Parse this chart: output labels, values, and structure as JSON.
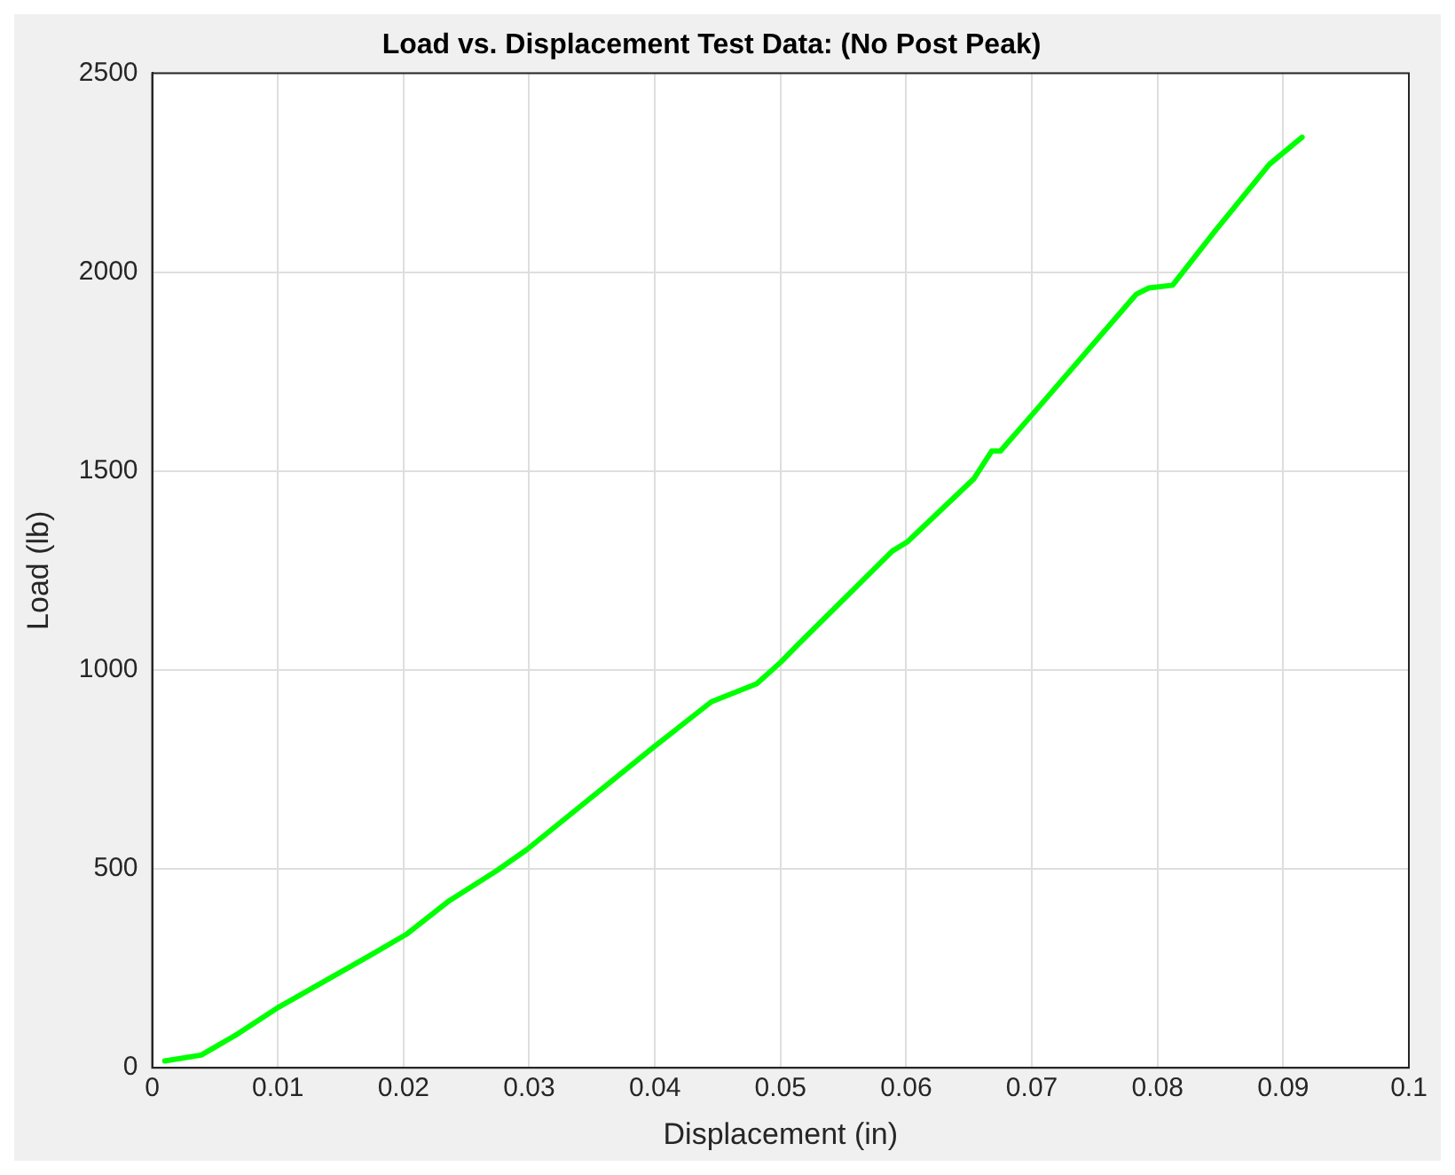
{
  "chart_data": {
    "type": "line",
    "title": "Load vs. Displacement Test Data: (No Post Peak)",
    "xlabel": "Displacement (in)",
    "ylabel": "Load (lb)",
    "x": [
      0.001,
      0.0039,
      0.0068,
      0.0101,
      0.0173,
      0.0202,
      0.0236,
      0.0274,
      0.0298,
      0.0399,
      0.0445,
      0.0481,
      0.05,
      0.0514,
      0.0589,
      0.0601,
      0.0654,
      0.0668,
      0.0675,
      0.0702,
      0.0783,
      0.0793,
      0.0812,
      0.0846,
      0.0889,
      0.0915
    ],
    "series": [
      {
        "color": "#00ff00",
        "values": [
          17,
          32,
          85,
          153,
          282,
          335,
          419,
          495,
          548,
          806,
          920,
          965,
          1019,
          1064,
          1299,
          1322,
          1481,
          1550,
          1550,
          1648,
          1944,
          1960,
          1967,
          2104,
          2271,
          2339
        ]
      }
    ],
    "xlim": [
      0,
      0.1
    ],
    "xticks": [
      0,
      0.01,
      0.02,
      0.03,
      0.04,
      0.05,
      0.06,
      0.07,
      0.08,
      0.09,
      0.1
    ],
    "ylim": [
      0,
      2500
    ],
    "yticks": [
      0,
      500,
      1000,
      1500,
      2000,
      2500
    ],
    "grid": true,
    "legend": false,
    "marker": "none",
    "line_style": "solid"
  }
}
